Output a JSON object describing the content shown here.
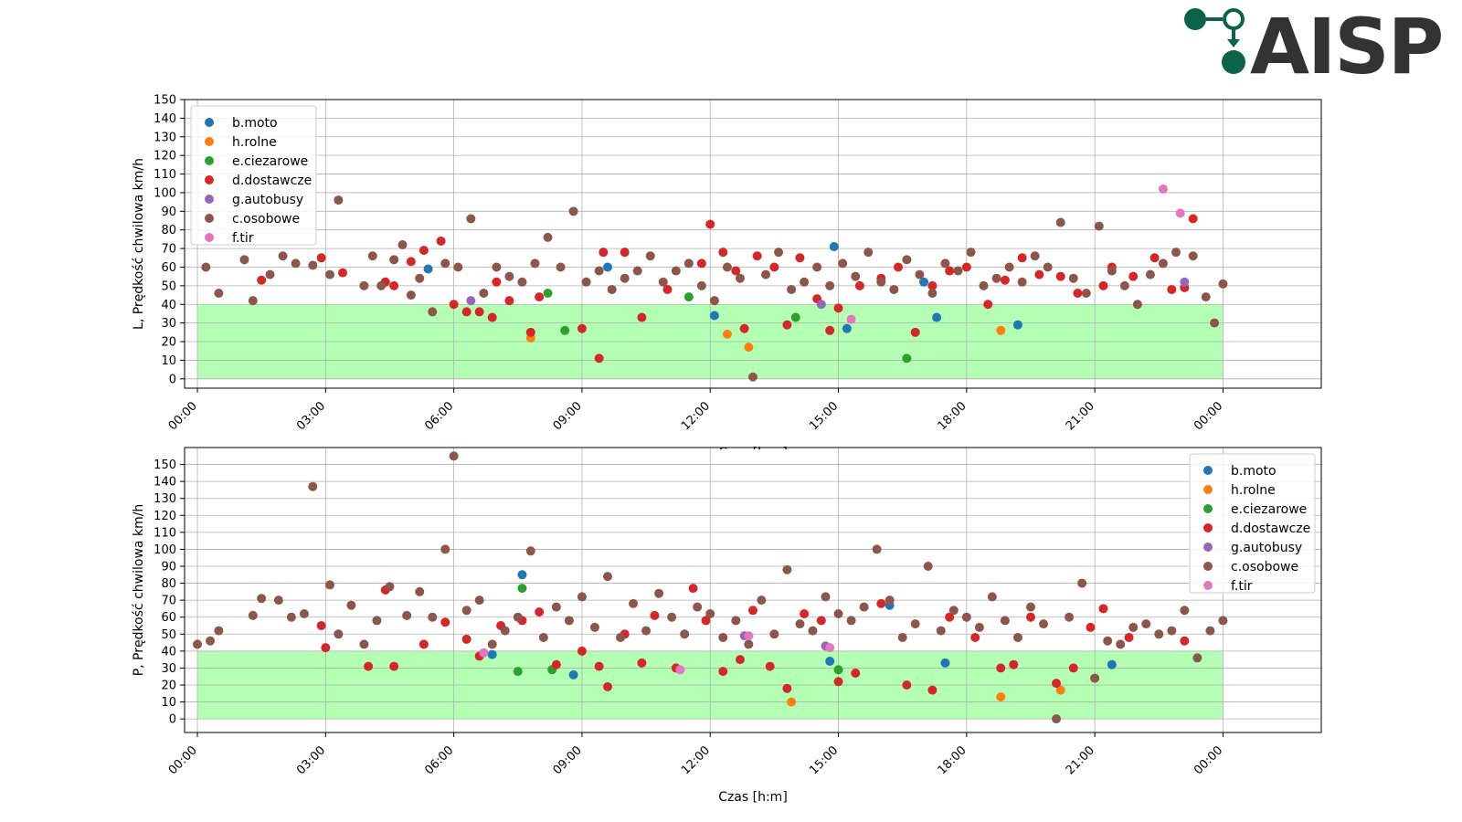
{
  "logo": {
    "text": "AISP",
    "brand_color": "#0b6447"
  },
  "zone": {
    "limit": 40,
    "color": "#b3ffb3"
  },
  "categories": [
    {
      "key": "b",
      "label": "b.moto",
      "color": "#1f77b4"
    },
    {
      "key": "h",
      "label": "h.rolne",
      "color": "#ff7f0e"
    },
    {
      "key": "e",
      "label": "e.ciezarowe",
      "color": "#2ca02c"
    },
    {
      "key": "d",
      "label": "d.dostawcze",
      "color": "#d62728"
    },
    {
      "key": "g",
      "label": "g.autobusy",
      "color": "#9467bd"
    },
    {
      "key": "c",
      "label": "c.osobowe",
      "color": "#8c564b"
    },
    {
      "key": "f",
      "label": "f.tir",
      "color": "#e377c2"
    }
  ],
  "chart_data": [
    {
      "type": "scatter",
      "id": "top",
      "xlabel": "Czas [h:m]",
      "ylabel": "L, Prędkość chwilowa km/h",
      "xlim": [
        -0.3,
        26.3
      ],
      "ylim": [
        -5,
        150
      ],
      "xticks": [
        0,
        3,
        6,
        9,
        12,
        15,
        18,
        21,
        24
      ],
      "xtick_labels": [
        "00:00",
        "03:00",
        "06:00",
        "09:00",
        "12:00",
        "15:00",
        "18:00",
        "21:00",
        "00:00"
      ],
      "yticks": [
        0,
        10,
        20,
        30,
        40,
        50,
        60,
        70,
        80,
        90,
        100,
        110,
        120,
        130,
        140,
        150
      ],
      "grid": true,
      "legend": "top-left",
      "series": [
        {
          "name": "b.moto",
          "color": "#1f77b4",
          "x": [
            5.4,
            9.6,
            12.1,
            14.9,
            15.2,
            17.0,
            17.3,
            19.2
          ],
          "y": [
            59,
            60,
            34,
            71,
            27,
            52,
            33,
            29
          ]
        },
        {
          "name": "h.rolne",
          "color": "#ff7f0e",
          "x": [
            7.8,
            12.4,
            12.9,
            18.8
          ],
          "y": [
            22,
            24,
            17,
            26
          ]
        },
        {
          "name": "e.ciezarowe",
          "color": "#2ca02c",
          "x": [
            8.2,
            8.6,
            11.5,
            14.0,
            16.6
          ],
          "y": [
            46,
            26,
            44,
            33,
            11
          ]
        },
        {
          "name": "d.dostawcze",
          "color": "#d62728",
          "x": [
            1.5,
            2.9,
            3.4,
            4.4,
            4.6,
            5.0,
            5.3,
            5.7,
            6.0,
            6.3,
            6.6,
            6.9,
            7.0,
            7.3,
            7.8,
            8.0,
            9.0,
            9.4,
            9.5,
            10.0,
            10.4,
            11.0,
            11.8,
            12.0,
            12.3,
            12.6,
            12.8,
            13.1,
            13.5,
            13.8,
            14.1,
            14.5,
            14.8,
            15.0,
            15.5,
            16.0,
            16.4,
            16.8,
            17.2,
            17.6,
            18.0,
            18.5,
            18.9,
            19.3,
            19.7,
            20.2,
            20.6,
            21.2,
            21.4,
            21.9,
            22.4,
            22.8,
            23.1,
            23.3
          ],
          "y": [
            53,
            65,
            57,
            52,
            50,
            63,
            69,
            74,
            40,
            36,
            36,
            33,
            52,
            42,
            25,
            44,
            27,
            11,
            68,
            68,
            33,
            48,
            62,
            83,
            68,
            58,
            27,
            66,
            60,
            29,
            65,
            43,
            26,
            38,
            50,
            54,
            60,
            25,
            50,
            58,
            60,
            40,
            53,
            65,
            56,
            55,
            46,
            50,
            60,
            55,
            65,
            48,
            49,
            86
          ]
        },
        {
          "name": "g.autobusy",
          "color": "#9467bd",
          "x": [
            6.4,
            14.6,
            23.1
          ],
          "y": [
            42,
            40,
            52
          ]
        },
        {
          "name": "c.osobowe",
          "color": "#8c564b",
          "x": [
            0.2,
            0.5,
            1.1,
            1.3,
            1.7,
            2.0,
            2.3,
            2.7,
            3.1,
            3.3,
            3.9,
            4.1,
            4.3,
            4.6,
            4.8,
            5.0,
            5.2,
            5.5,
            5.8,
            6.1,
            6.4,
            6.7,
            7.0,
            7.3,
            7.6,
            7.9,
            8.2,
            8.5,
            8.8,
            9.1,
            9.4,
            9.7,
            10.0,
            10.3,
            10.6,
            10.9,
            11.2,
            11.5,
            11.8,
            12.1,
            12.4,
            12.7,
            13.0,
            13.3,
            13.6,
            13.9,
            14.2,
            14.5,
            14.8,
            15.1,
            15.4,
            15.7,
            16.0,
            16.3,
            16.6,
            16.9,
            17.2,
            17.5,
            17.8,
            18.1,
            18.4,
            18.7,
            19.0,
            19.3,
            19.6,
            19.9,
            20.2,
            20.5,
            20.8,
            21.1,
            21.4,
            21.7,
            22.0,
            22.3,
            22.6,
            22.9,
            23.3,
            23.6,
            23.8,
            24.0
          ],
          "y": [
            60,
            46,
            64,
            42,
            56,
            66,
            62,
            61,
            56,
            96,
            50,
            66,
            50,
            64,
            72,
            45,
            54,
            36,
            62,
            60,
            86,
            46,
            60,
            55,
            52,
            62,
            76,
            60,
            90,
            52,
            58,
            48,
            54,
            58,
            66,
            52,
            58,
            62,
            50,
            42,
            60,
            54,
            1,
            56,
            68,
            48,
            52,
            60,
            50,
            62,
            55,
            68,
            52,
            48,
            64,
            56,
            46,
            62,
            58,
            68,
            50,
            54,
            60,
            52,
            66,
            60,
            84,
            54,
            46,
            82,
            58,
            50,
            40,
            56,
            62,
            68,
            66,
            44,
            30,
            51
          ]
        },
        {
          "name": "f.tir",
          "color": "#e377c2",
          "x": [
            15.3,
            22.6,
            23.0
          ],
          "y": [
            32,
            102,
            89
          ]
        }
      ]
    },
    {
      "type": "scatter",
      "id": "bottom",
      "xlabel": "Czas [h:m]",
      "ylabel": "P, Prędkość chwilowa km/h",
      "xlim": [
        -0.3,
        26.3
      ],
      "ylim": [
        -8,
        160
      ],
      "xticks": [
        0,
        3,
        6,
        9,
        12,
        15,
        18,
        21,
        24
      ],
      "xtick_labels": [
        "00:00",
        "03:00",
        "06:00",
        "09:00",
        "12:00",
        "15:00",
        "18:00",
        "21:00",
        "00:00"
      ],
      "yticks": [
        0,
        10,
        20,
        30,
        40,
        50,
        60,
        70,
        80,
        90,
        100,
        110,
        120,
        130,
        140,
        150
      ],
      "grid": true,
      "legend": "top-right",
      "series": [
        {
          "name": "b.moto",
          "color": "#1f77b4",
          "x": [
            6.9,
            7.6,
            8.8,
            14.8,
            16.2,
            17.5,
            21.4
          ],
          "y": [
            38,
            85,
            26,
            34,
            67,
            33,
            32
          ]
        },
        {
          "name": "h.rolne",
          "color": "#ff7f0e",
          "x": [
            13.9,
            18.8,
            20.2
          ],
          "y": [
            10,
            13,
            17
          ]
        },
        {
          "name": "e.ciezarowe",
          "color": "#2ca02c",
          "x": [
            7.5,
            7.6,
            8.3,
            15.0
          ],
          "y": [
            28,
            77,
            29,
            29
          ]
        },
        {
          "name": "d.dostawcze",
          "color": "#d62728",
          "x": [
            2.9,
            3.0,
            4.0,
            4.4,
            4.6,
            5.3,
            5.8,
            6.3,
            6.6,
            7.1,
            7.6,
            8.0,
            8.4,
            9.0,
            9.4,
            9.6,
            10.0,
            10.4,
            10.7,
            11.2,
            11.6,
            11.9,
            12.3,
            12.7,
            13.0,
            13.4,
            13.8,
            14.2,
            14.6,
            15.0,
            15.4,
            16.0,
            16.6,
            17.2,
            17.6,
            18.2,
            18.8,
            19.1,
            19.5,
            20.1,
            20.5,
            20.9,
            21.2,
            21.8,
            23.1
          ],
          "y": [
            55,
            42,
            31,
            76,
            31,
            44,
            57,
            47,
            37,
            55,
            58,
            63,
            32,
            40,
            31,
            19,
            50,
            33,
            61,
            30,
            77,
            58,
            28,
            35,
            64,
            31,
            18,
            62,
            58,
            22,
            27,
            68,
            20,
            17,
            60,
            48,
            30,
            32,
            60,
            21,
            30,
            54,
            65,
            48,
            46
          ]
        },
        {
          "name": "g.autobusy",
          "color": "#9467bd",
          "x": [
            12.8,
            14.7
          ],
          "y": [
            49,
            43
          ]
        },
        {
          "name": "c.osobowe",
          "color": "#8c564b",
          "x": [
            0.0,
            0.3,
            0.5,
            1.3,
            1.5,
            1.9,
            2.2,
            2.5,
            2.7,
            3.1,
            3.3,
            3.6,
            3.9,
            4.2,
            4.5,
            4.9,
            5.2,
            5.5,
            5.8,
            6.0,
            6.3,
            6.6,
            6.9,
            7.2,
            7.5,
            7.8,
            8.1,
            8.4,
            8.7,
            9.0,
            9.3,
            9.6,
            9.9,
            10.2,
            10.5,
            10.8,
            11.1,
            11.4,
            11.7,
            12.0,
            12.3,
            12.6,
            12.9,
            13.2,
            13.5,
            13.8,
            14.1,
            14.4,
            14.7,
            15.0,
            15.3,
            15.6,
            15.9,
            16.2,
            16.5,
            16.8,
            17.1,
            17.4,
            17.7,
            18.0,
            18.3,
            18.6,
            18.9,
            19.2,
            19.5,
            19.8,
            20.1,
            20.4,
            20.7,
            21.0,
            21.3,
            21.6,
            21.9,
            22.2,
            22.5,
            22.8,
            23.1,
            23.4,
            23.7,
            24.0
          ],
          "y": [
            44,
            46,
            52,
            61,
            71,
            70,
            60,
            62,
            137,
            79,
            50,
            67,
            44,
            58,
            78,
            61,
            75,
            60,
            100,
            155,
            64,
            70,
            44,
            52,
            60,
            99,
            48,
            66,
            58,
            72,
            54,
            84,
            48,
            68,
            52,
            74,
            60,
            50,
            66,
            62,
            48,
            58,
            44,
            70,
            50,
            88,
            56,
            52,
            72,
            62,
            58,
            66,
            100,
            70,
            48,
            56,
            90,
            52,
            64,
            60,
            54,
            72,
            58,
            48,
            66,
            56,
            0,
            60,
            80,
            24,
            46,
            44,
            54,
            56,
            50,
            52,
            64,
            36,
            52,
            58
          ]
        },
        {
          "name": "f.tir",
          "color": "#e377c2",
          "x": [
            6.7,
            11.3,
            12.9,
            14.8
          ],
          "y": [
            39,
            29,
            49,
            42
          ]
        }
      ]
    }
  ]
}
